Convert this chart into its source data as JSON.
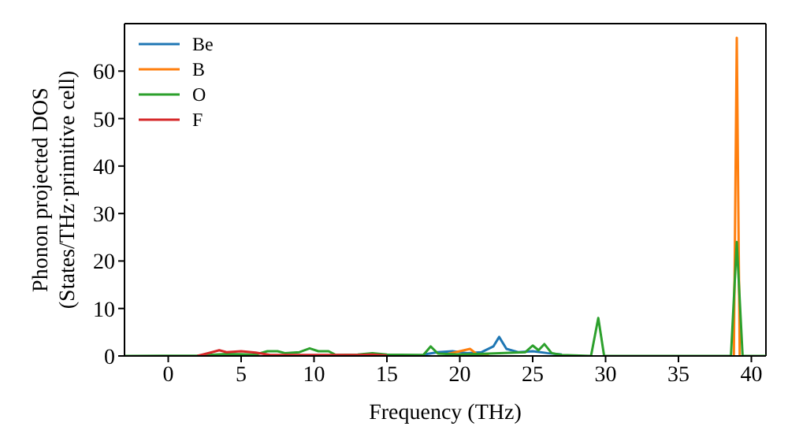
{
  "chart_data": {
    "type": "line",
    "xlabel": "Frequency (THz)",
    "ylabel": "Phonon projected DOS\n(States/THz·primitive cell)",
    "xlim": [
      -3,
      41
    ],
    "xticks": [
      0,
      5,
      10,
      15,
      20,
      25,
      30,
      35,
      40
    ],
    "ylim": [
      0,
      70
    ],
    "yticks": [
      0,
      10,
      20,
      30,
      40,
      50,
      60
    ],
    "legend": "top left",
    "grid": false,
    "marker": "none",
    "line_style": "solid",
    "series": [
      {
        "name": "Be",
        "color": "#1f77b4",
        "x": [
          17.5,
          18.5,
          19.5,
          20.5,
          21.5,
          22.3,
          22.7,
          23.2,
          24,
          25,
          26,
          27
        ],
        "values": [
          0.3,
          0.8,
          1,
          0.6,
          0.8,
          2,
          4,
          1.5,
          0.8,
          1,
          0.6,
          0.3
        ]
      },
      {
        "name": "B",
        "color": "#ff7f0e",
        "x": [
          19,
          20.3,
          20.7,
          21.2,
          22,
          30,
          38.8,
          39,
          39.2
        ],
        "values": [
          0.3,
          1.2,
          1.5,
          0.3,
          0.3,
          null,
          0,
          67,
          0
        ]
      },
      {
        "name": "O",
        "color": "#2ca02c",
        "x": [
          -3,
          2,
          4,
          6,
          6.8,
          7.5,
          8,
          9,
          9.7,
          10.3,
          11,
          11.5,
          13,
          14,
          15,
          17.5,
          18,
          18.5,
          20,
          22,
          24.5,
          25,
          25.4,
          25.8,
          26.3,
          27,
          29,
          29.5,
          29.9,
          38.6,
          39,
          39.4,
          41
        ],
        "values": [
          0,
          0.1,
          0.4,
          0.3,
          1,
          1,
          0.6,
          0.8,
          1.6,
          1,
          1,
          0.2,
          0.3,
          0.6,
          0.3,
          0.2,
          2,
          0.5,
          0.3,
          0.5,
          0.8,
          2.2,
          1.2,
          2.5,
          0.6,
          0.2,
          0,
          8,
          0,
          0,
          24,
          0,
          0
        ]
      },
      {
        "name": "F",
        "color": "#d62728",
        "x": [
          2,
          3,
          3.5,
          4,
          5,
          6,
          7,
          13,
          14,
          15
        ],
        "values": [
          0,
          0.8,
          1.2,
          0.8,
          1,
          0.7,
          0.2,
          0.2,
          0.3,
          0.1
        ]
      }
    ]
  }
}
